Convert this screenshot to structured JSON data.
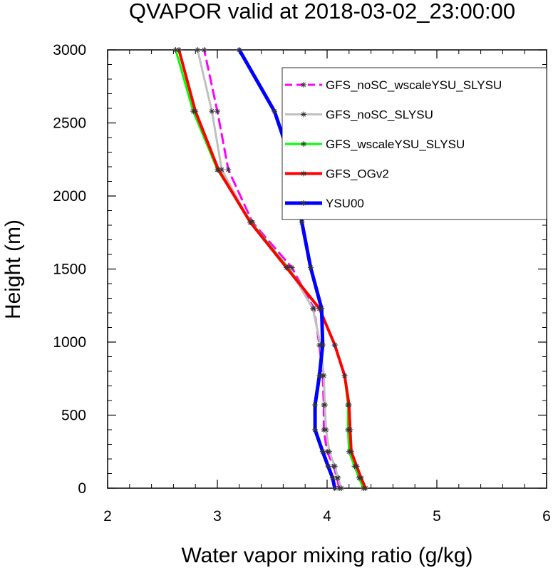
{
  "chart_data": {
    "type": "line",
    "title": "QVAPOR valid at 2018-03-02_23:00:00",
    "xlabel": "Water vapor mixing ratio (g/kg)",
    "ylabel": "Height (m)",
    "xlim": [
      2,
      6
    ],
    "ylim": [
      0,
      3000
    ],
    "xticks": [
      "2",
      "3",
      "4",
      "5",
      "6"
    ],
    "yticks": [
      "0",
      "500",
      "1000",
      "1500",
      "2000",
      "2500",
      "3000"
    ],
    "legend_position": "top-right",
    "grid": false,
    "series": [
      {
        "name": "GFS_noSC_wscaleYSU_SLYSU",
        "color": "#ff00ff",
        "style": "dashed",
        "width": 3,
        "points": [
          [
            4.11,
            0
          ],
          [
            4.09,
            70
          ],
          [
            4.06,
            150
          ],
          [
            4.0,
            250
          ],
          [
            3.97,
            400
          ],
          [
            3.97,
            570
          ],
          [
            3.96,
            770
          ],
          [
            3.93,
            980
          ],
          [
            3.88,
            1230
          ],
          [
            3.68,
            1510
          ],
          [
            3.32,
            1820
          ],
          [
            3.1,
            2180
          ],
          [
            3.0,
            2580
          ],
          [
            2.88,
            3000
          ]
        ]
      },
      {
        "name": "GFS_noSC_SLYSU",
        "color": "#c0c0c0",
        "style": "solid",
        "width": 3,
        "points": [
          [
            4.13,
            0
          ],
          [
            4.1,
            70
          ],
          [
            4.07,
            150
          ],
          [
            4.02,
            250
          ],
          [
            3.99,
            400
          ],
          [
            3.98,
            570
          ],
          [
            3.97,
            770
          ],
          [
            3.94,
            980
          ],
          [
            3.87,
            1230
          ],
          [
            3.65,
            1510
          ],
          [
            3.3,
            1820
          ],
          [
            3.04,
            2180
          ],
          [
            2.95,
            2580
          ],
          [
            2.82,
            3000
          ]
        ]
      },
      {
        "name": "GFS_wscaleYSU_SLYSU",
        "color": "#00ff00",
        "style": "solid",
        "width": 3,
        "points": [
          [
            4.33,
            0
          ],
          [
            4.29,
            70
          ],
          [
            4.25,
            150
          ],
          [
            4.2,
            250
          ],
          [
            4.19,
            400
          ],
          [
            4.19,
            570
          ],
          [
            4.16,
            770
          ],
          [
            4.07,
            980
          ],
          [
            3.93,
            1230
          ],
          [
            3.64,
            1510
          ],
          [
            3.31,
            1820
          ],
          [
            3.0,
            2180
          ],
          [
            2.78,
            2580
          ],
          [
            2.62,
            3000
          ]
        ]
      },
      {
        "name": "GFS_OGv2",
        "color": "#ff0000",
        "style": "solid",
        "width": 4,
        "points": [
          [
            4.35,
            0
          ],
          [
            4.31,
            70
          ],
          [
            4.27,
            150
          ],
          [
            4.22,
            250
          ],
          [
            4.21,
            400
          ],
          [
            4.2,
            570
          ],
          [
            4.16,
            770
          ],
          [
            4.07,
            980
          ],
          [
            3.93,
            1230
          ],
          [
            3.63,
            1510
          ],
          [
            3.3,
            1820
          ],
          [
            3.01,
            2180
          ],
          [
            2.8,
            2580
          ],
          [
            2.65,
            3000
          ]
        ]
      },
      {
        "name": "YSU00",
        "color": "#0000ff",
        "style": "solid",
        "width": 5,
        "points": [
          [
            4.07,
            0
          ],
          [
            4.05,
            70
          ],
          [
            4.01,
            150
          ],
          [
            3.96,
            250
          ],
          [
            3.89,
            400
          ],
          [
            3.89,
            570
          ],
          [
            3.93,
            770
          ],
          [
            3.96,
            980
          ],
          [
            3.95,
            1230
          ],
          [
            3.85,
            1510
          ],
          [
            3.77,
            1820
          ],
          [
            3.7,
            2180
          ],
          [
            3.52,
            2580
          ],
          [
            3.2,
            3000
          ]
        ]
      }
    ]
  }
}
